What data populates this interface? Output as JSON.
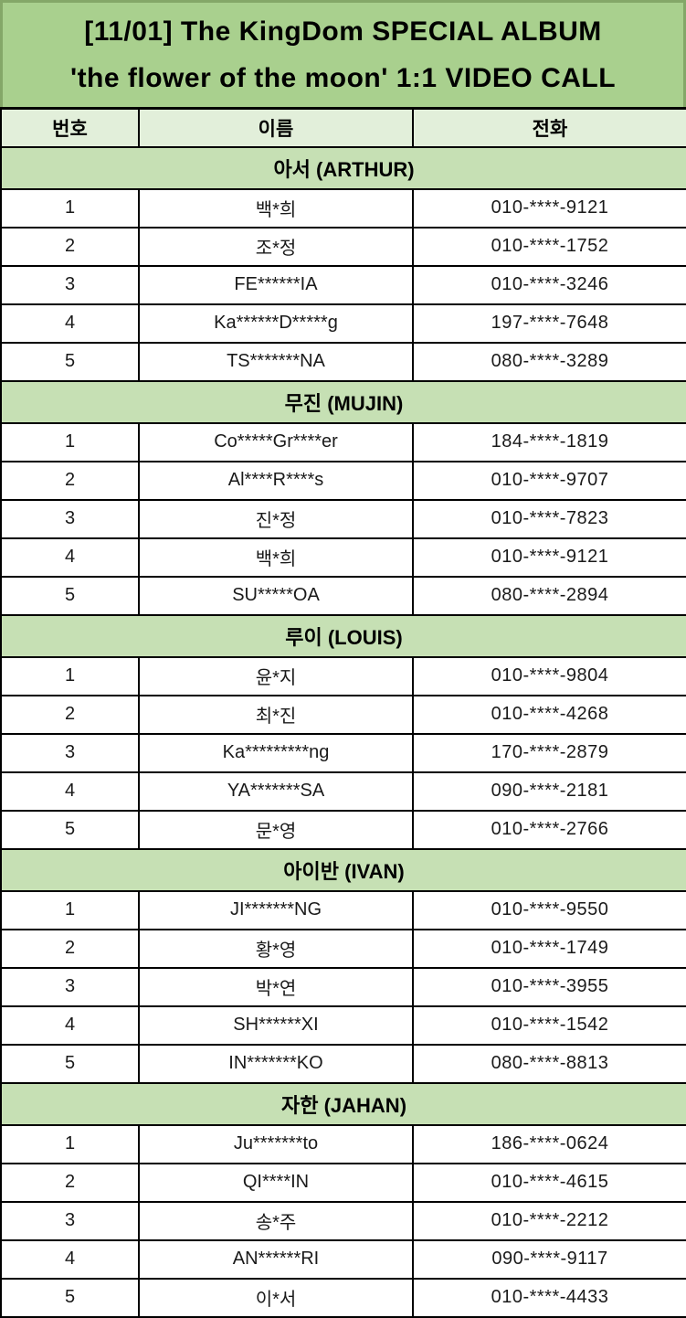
{
  "title": {
    "line1": "[11/01] The KingDom SPECIAL ALBUM",
    "line2": "'the flower of the moon' 1:1 VIDEO CALL"
  },
  "columns": [
    "번호",
    "이름",
    "전화"
  ],
  "sections": [
    {
      "header": "아서 (ARTHUR)",
      "rows": [
        {
          "no": "1",
          "name": "백*희",
          "phone": "010-****-9121"
        },
        {
          "no": "2",
          "name": "조*정",
          "phone": "010-****-1752"
        },
        {
          "no": "3",
          "name": "FE******IA",
          "phone": "010-****-3246"
        },
        {
          "no": "4",
          "name": "Ka******D*****g",
          "phone": "197-****-7648"
        },
        {
          "no": "5",
          "name": "TS*******NA",
          "phone": "080-****-3289"
        }
      ]
    },
    {
      "header": "무진 (MUJIN)",
      "rows": [
        {
          "no": "1",
          "name": "Co*****Gr****er",
          "phone": "184-****-1819"
        },
        {
          "no": "2",
          "name": "Al****R****s",
          "phone": "010-****-9707"
        },
        {
          "no": "3",
          "name": "진*정",
          "phone": "010-****-7823"
        },
        {
          "no": "4",
          "name": "백*희",
          "phone": "010-****-9121"
        },
        {
          "no": "5",
          "name": "SU*****OA",
          "phone": "080-****-2894"
        }
      ]
    },
    {
      "header": "루이 (LOUIS)",
      "rows": [
        {
          "no": "1",
          "name": "윤*지",
          "phone": "010-****-9804"
        },
        {
          "no": "2",
          "name": "최*진",
          "phone": "010-****-4268"
        },
        {
          "no": "3",
          "name": "Ka*********ng",
          "phone": "170-****-2879"
        },
        {
          "no": "4",
          "name": "YA*******SA",
          "phone": "090-****-2181"
        },
        {
          "no": "5",
          "name": "문*영",
          "phone": "010-****-2766"
        }
      ]
    },
    {
      "header": "아이반 (IVAN)",
      "rows": [
        {
          "no": "1",
          "name": "JI*******NG",
          "phone": "010-****-9550"
        },
        {
          "no": "2",
          "name": "황*영",
          "phone": "010-****-1749"
        },
        {
          "no": "3",
          "name": "박*연",
          "phone": "010-****-3955"
        },
        {
          "no": "4",
          "name": "SH******XI",
          "phone": "010-****-1542"
        },
        {
          "no": "5",
          "name": "IN*******KO",
          "phone": "080-****-8813"
        }
      ]
    },
    {
      "header": "자한 (JAHAN)",
      "rows": [
        {
          "no": "1",
          "name": "Ju*******to",
          "phone": "186-****-0624"
        },
        {
          "no": "2",
          "name": "QI****IN",
          "phone": "010-****-4615"
        },
        {
          "no": "3",
          "name": "송*주",
          "phone": "010-****-2212"
        },
        {
          "no": "4",
          "name": "AN******RI",
          "phone": "090-****-9117"
        },
        {
          "no": "5",
          "name": "이*서",
          "phone": "010-****-4433"
        }
      ]
    }
  ],
  "colors": {
    "title_bg": "#a9d08e",
    "title_frame": "#84a768",
    "section_bg": "#c6e0b4",
    "colhead_bg": "#e2efda",
    "grid": "#000000",
    "text": "#1a1a1a"
  }
}
